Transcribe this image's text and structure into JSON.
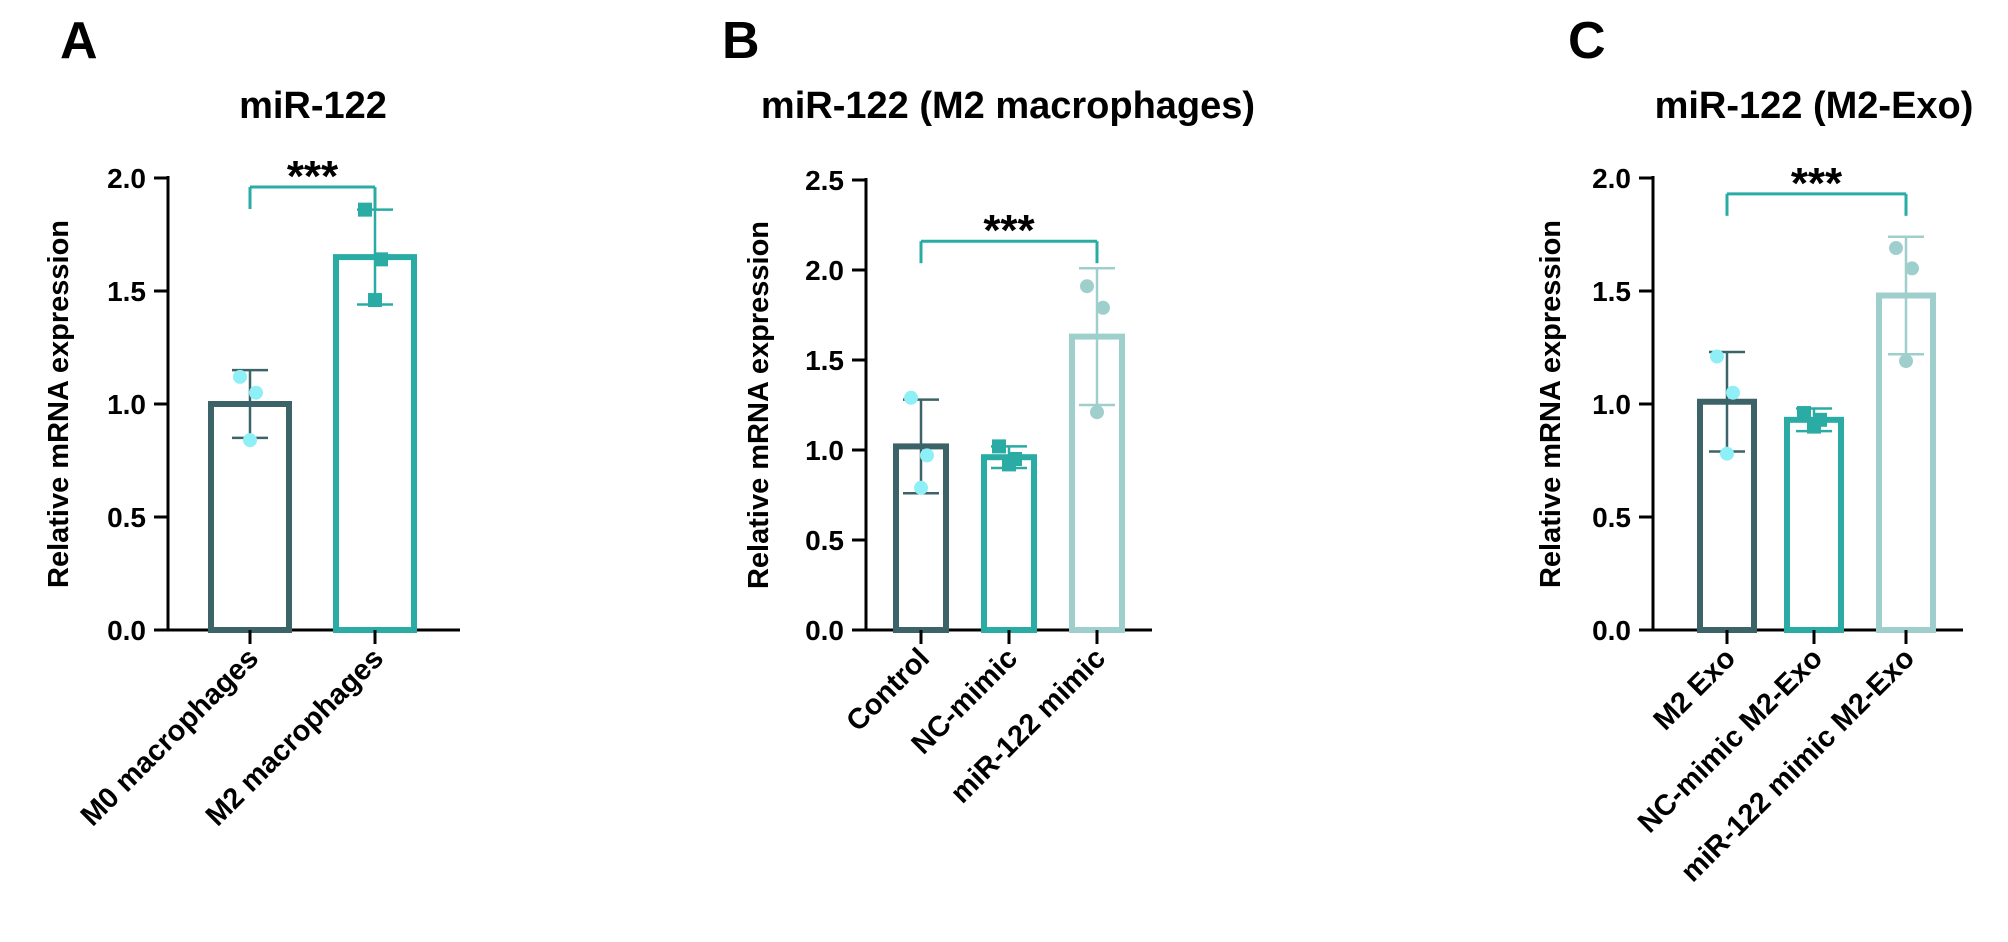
{
  "chart_data": [
    {
      "panel": "A",
      "type": "bar",
      "title": "miR-122",
      "ylabel": "Relative mRNA expression",
      "ylim": [
        0,
        2.0
      ],
      "yticks": [
        "0.0",
        "0.5",
        "1.0",
        "1.5",
        "2.0"
      ],
      "categories": [
        "M0 macrophages",
        "M2 macrophages"
      ],
      "values": [
        1.0,
        1.65
      ],
      "errors": [
        0.15,
        0.21
      ],
      "points": [
        [
          1.12,
          1.05,
          0.84
        ],
        [
          1.86,
          1.64,
          1.46
        ]
      ],
      "markers": [
        "circle",
        "square"
      ],
      "colors": [
        "#3c6468",
        "#2aaca5"
      ],
      "point_colors": [
        "#8ef0f6",
        "#2aaca5"
      ],
      "significance": [
        {
          "from": 0,
          "to": 1,
          "label": "***",
          "y": 1.96
        }
      ]
    },
    {
      "panel": "B",
      "type": "bar",
      "title": "miR-122 (M2 macrophages)",
      "ylabel": "Relative mRNA expression",
      "ylim": [
        0,
        2.5
      ],
      "yticks": [
        "0.0",
        "0.5",
        "1.0",
        "1.5",
        "2.0",
        "2.5"
      ],
      "categories": [
        "Control",
        "NC-mimic",
        "miR-122 mimic"
      ],
      "values": [
        1.02,
        0.96,
        1.63
      ],
      "errors": [
        0.26,
        0.06,
        0.38
      ],
      "points": [
        [
          1.29,
          0.97,
          0.79
        ],
        [
          1.02,
          0.95,
          0.92
        ],
        [
          1.91,
          1.79,
          1.21
        ]
      ],
      "markers": [
        "circle",
        "square",
        "circle"
      ],
      "colors": [
        "#3c6468",
        "#2aaca5",
        "#9fcfcd"
      ],
      "point_colors": [
        "#8ef0f6",
        "#2aaca5",
        "#9fcfcd"
      ],
      "significance": [
        {
          "from": 0,
          "to": 2,
          "label": "***",
          "y": 2.16
        }
      ]
    },
    {
      "panel": "C",
      "type": "bar",
      "title": "miR-122 (M2-Exo)",
      "ylabel": "Relative mRNA expression",
      "ylim": [
        0,
        2.0
      ],
      "yticks": [
        "0.0",
        "0.5",
        "1.0",
        "1.5",
        "2.0"
      ],
      "categories": [
        "M2 Exo",
        "NC-mimic M2-Exo",
        "miR-122 mimic M2-Exo"
      ],
      "values": [
        1.01,
        0.93,
        1.48
      ],
      "errors": [
        0.22,
        0.05,
        0.26
      ],
      "points": [
        [
          1.21,
          1.05,
          0.78
        ],
        [
          0.96,
          0.93,
          0.9
        ],
        [
          1.69,
          1.6,
          1.19
        ]
      ],
      "markers": [
        "circle",
        "square",
        "circle"
      ],
      "colors": [
        "#3c6468",
        "#2aaca5",
        "#9fcfcd"
      ],
      "point_colors": [
        "#8ef0f6",
        "#2aaca5",
        "#9fcfcd"
      ],
      "significance": [
        {
          "from": 0,
          "to": 2,
          "label": "***",
          "y": 1.93
        }
      ]
    }
  ],
  "sig_color": "#2aaca5"
}
